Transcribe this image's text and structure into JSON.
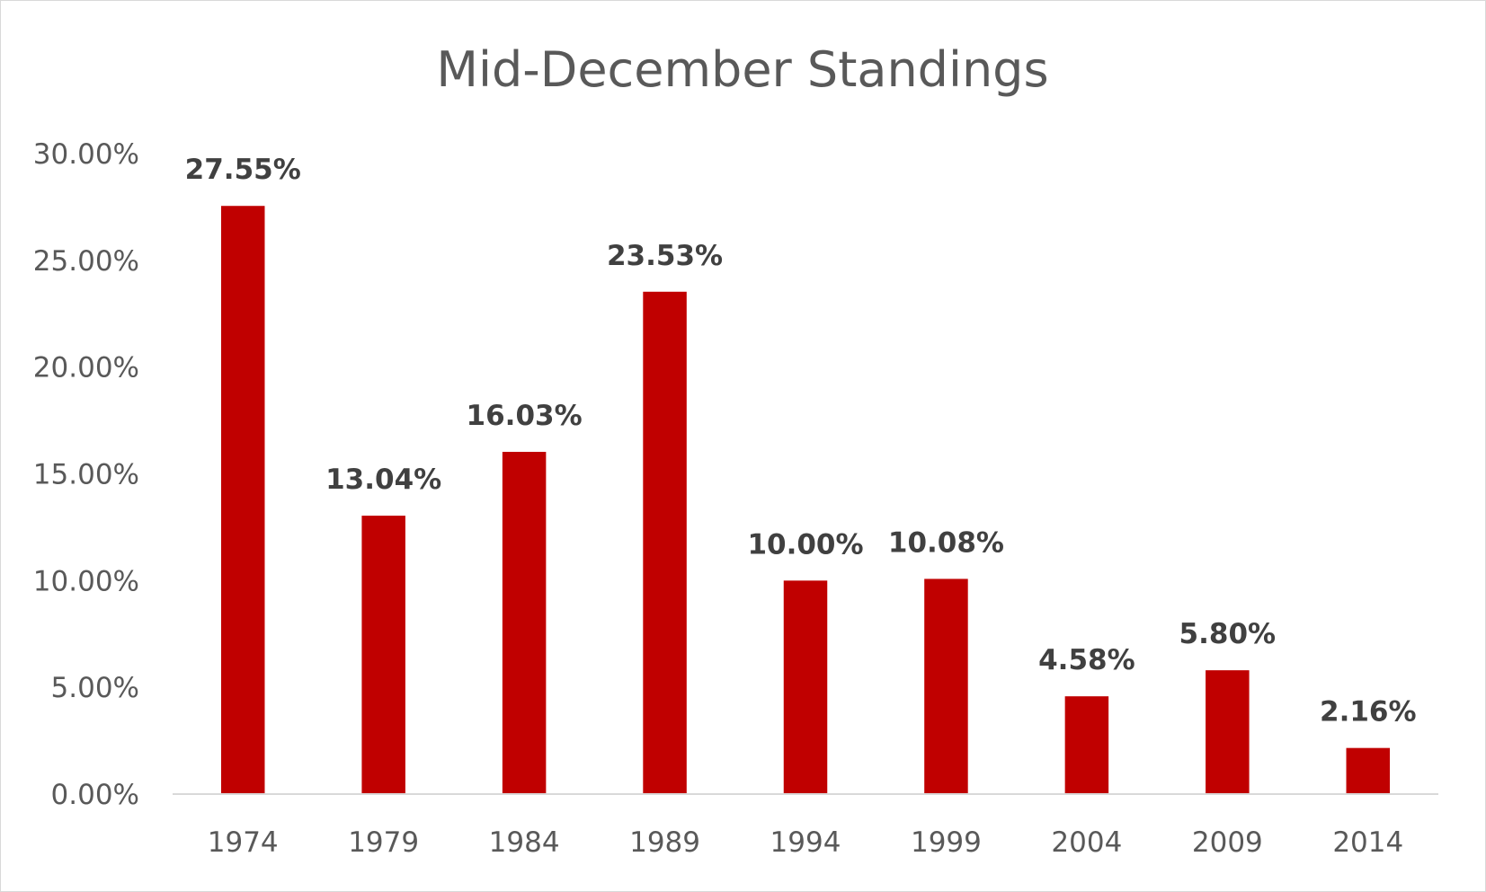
{
  "chart_data": {
    "type": "bar",
    "title": "Mid-December Standings",
    "xlabel": "",
    "ylabel": "",
    "categories": [
      "1974",
      "1979",
      "1984",
      "1989",
      "1994",
      "1999",
      "2004",
      "2009",
      "2014"
    ],
    "values": [
      27.55,
      13.04,
      16.03,
      23.53,
      10.0,
      10.08,
      4.58,
      5.8,
      2.16
    ],
    "data_labels": [
      "27.55%",
      "13.04%",
      "16.03%",
      "23.53%",
      "10.00%",
      "10.08%",
      "4.58%",
      "5.80%",
      "2.16%"
    ],
    "ylim": [
      0,
      30
    ],
    "y_ticks": [
      0,
      5,
      10,
      15,
      20,
      25,
      30
    ],
    "y_tick_labels": [
      "0.00%",
      "5.00%",
      "10.00%",
      "15.00%",
      "20.00%",
      "25.00%",
      "30.00%"
    ],
    "grid": false,
    "legend": "none",
    "colors": {
      "bar": "#c00000",
      "axis": "#d9d9d9",
      "text": "#595959",
      "label": "#404040"
    }
  }
}
